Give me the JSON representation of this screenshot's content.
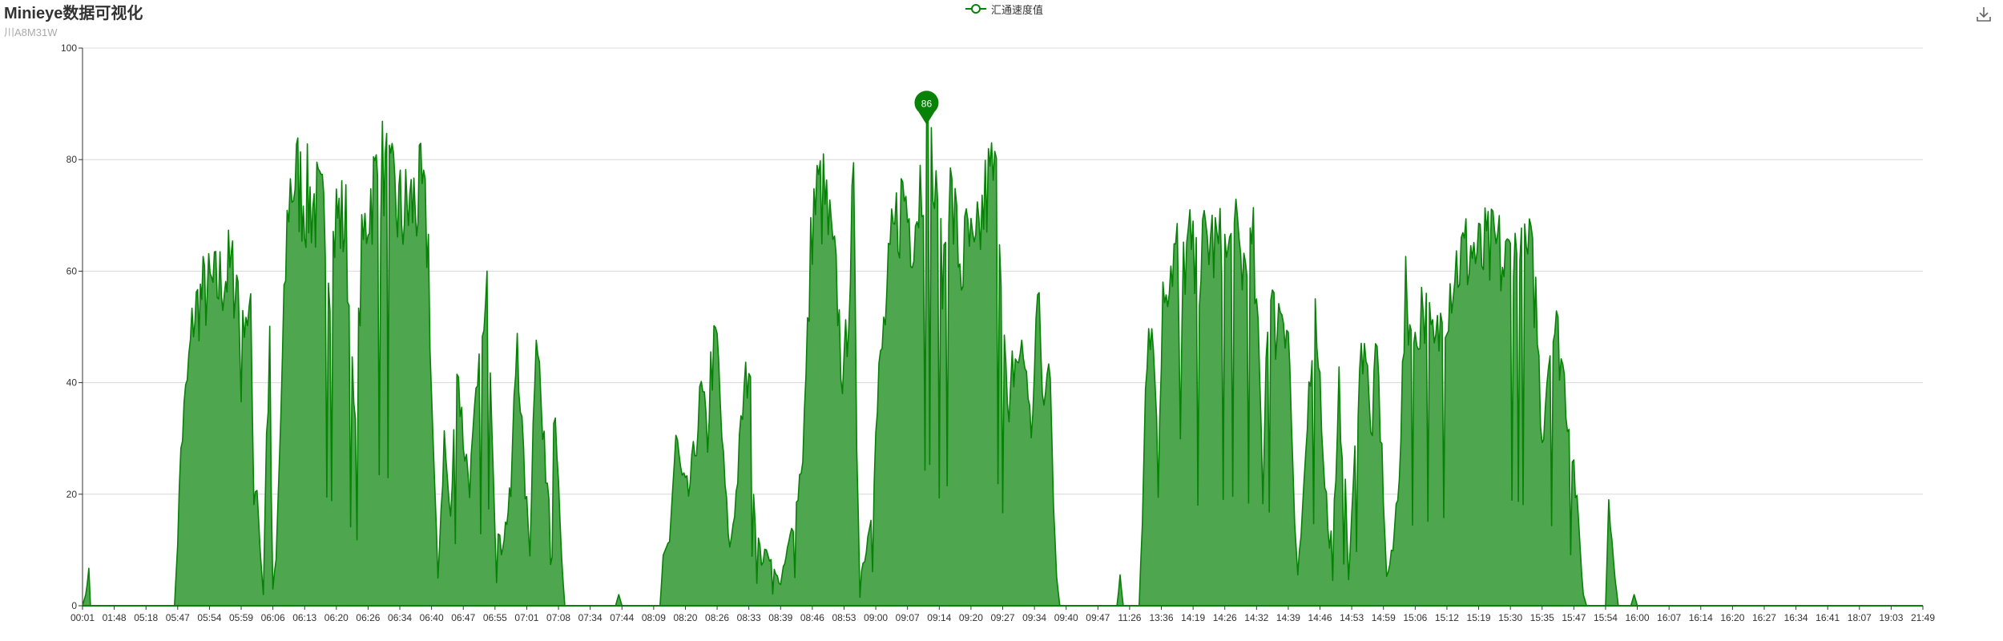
{
  "title": "Minieye数据可视化",
  "subtitle": "川A8M31W",
  "toolbox": {
    "save_icon": "download-icon"
  },
  "colors": {
    "series": "#078207",
    "area": "#4ea64e",
    "grid": "#d8d8d8",
    "axis": "#333333"
  },
  "chart_data": {
    "type": "area",
    "title": "Minieye数据可视化",
    "subtitle": "川A8M31W",
    "xlabel": "",
    "ylabel": "",
    "ylim": [
      0,
      100
    ],
    "yticks": [
      0,
      20,
      40,
      60,
      80,
      100
    ],
    "grid": true,
    "legend_placement": "top-center",
    "x_tick_labels": [
      "00:01",
      "01:48",
      "05:18",
      "05:47",
      "05:54",
      "05:59",
      "06:06",
      "06:13",
      "06:20",
      "06:26",
      "06:34",
      "06:40",
      "06:47",
      "06:55",
      "07:01",
      "07:08",
      "07:34",
      "07:44",
      "08:09",
      "08:20",
      "08:26",
      "08:33",
      "08:39",
      "08:46",
      "08:53",
      "09:00",
      "09:07",
      "09:14",
      "09:20",
      "09:27",
      "09:34",
      "09:40",
      "09:47",
      "11:26",
      "13:36",
      "14:19",
      "14:26",
      "14:32",
      "14:39",
      "14:46",
      "14:53",
      "14:59",
      "15:06",
      "15:12",
      "15:19",
      "15:30",
      "15:35",
      "15:47",
      "15:54",
      "16:00",
      "16:07",
      "16:14",
      "16:20",
      "16:27",
      "16:34",
      "16:41",
      "18:07",
      "19:03",
      "21:49"
    ],
    "series": [
      {
        "name": "汇通速度值",
        "profile": [
          [
            0.0,
            0
          ],
          [
            0.1,
            2
          ],
          [
            0.15,
            13
          ],
          [
            0.2,
            6
          ],
          [
            0.25,
            0
          ],
          [
            0.4,
            0
          ],
          [
            2.9,
            0
          ],
          [
            3.0,
            12
          ],
          [
            3.1,
            28
          ],
          [
            3.3,
            40
          ],
          [
            3.5,
            52
          ],
          [
            3.8,
            56
          ],
          [
            4.2,
            57
          ],
          [
            4.6,
            60
          ],
          [
            4.9,
            58
          ],
          [
            5.0,
            40
          ],
          [
            5.1,
            55
          ],
          [
            5.3,
            50
          ],
          [
            5.4,
            20
          ],
          [
            5.5,
            22
          ],
          [
            5.6,
            10
          ],
          [
            5.7,
            2
          ],
          [
            5.8,
            30
          ],
          [
            5.9,
            45
          ],
          [
            5.95,
            20
          ],
          [
            6.0,
            3
          ],
          [
            6.1,
            8
          ],
          [
            6.2,
            25
          ],
          [
            6.4,
            60
          ],
          [
            6.5,
            74
          ],
          [
            6.7,
            77
          ],
          [
            7.0,
            73
          ],
          [
            7.3,
            72
          ],
          [
            7.6,
            69
          ],
          [
            7.8,
            60
          ],
          [
            8.0,
            70
          ],
          [
            8.3,
            68
          ],
          [
            8.5,
            40
          ],
          [
            8.6,
            30
          ],
          [
            8.7,
            48
          ],
          [
            8.8,
            62
          ],
          [
            9.0,
            72
          ],
          [
            9.3,
            77
          ],
          [
            9.5,
            78
          ],
          [
            9.8,
            72
          ],
          [
            10.1,
            70
          ],
          [
            10.4,
            72
          ],
          [
            10.7,
            73
          ],
          [
            10.9,
            64
          ],
          [
            11.0,
            38
          ],
          [
            11.1,
            20
          ],
          [
            11.2,
            5
          ],
          [
            11.4,
            30
          ],
          [
            11.6,
            15
          ],
          [
            11.8,
            44
          ],
          [
            12.0,
            30
          ],
          [
            12.2,
            22
          ],
          [
            12.4,
            35
          ],
          [
            12.6,
            45
          ],
          [
            12.8,
            57
          ],
          [
            13.0,
            15
          ],
          [
            13.2,
            10
          ],
          [
            13.5,
            20
          ],
          [
            13.7,
            50
          ],
          [
            13.9,
            25
          ],
          [
            14.1,
            10
          ],
          [
            14.3,
            54
          ],
          [
            14.5,
            30
          ],
          [
            14.7,
            20
          ],
          [
            14.9,
            38
          ],
          [
            15.0,
            20
          ],
          [
            15.1,
            8
          ],
          [
            15.2,
            0
          ],
          [
            16.8,
            0
          ],
          [
            16.9,
            2
          ],
          [
            17.0,
            0
          ],
          [
            18.2,
            0
          ],
          [
            18.3,
            8
          ],
          [
            18.5,
            12
          ],
          [
            18.7,
            30
          ],
          [
            18.9,
            22
          ],
          [
            19.1,
            20
          ],
          [
            19.3,
            28
          ],
          [
            19.5,
            38
          ],
          [
            19.7,
            30
          ],
          [
            19.8,
            42
          ],
          [
            19.9,
            45
          ],
          [
            20.0,
            47
          ],
          [
            20.2,
            25
          ],
          [
            20.4,
            10
          ],
          [
            20.6,
            20
          ],
          [
            20.8,
            35
          ],
          [
            21.0,
            44
          ],
          [
            21.2,
            15
          ],
          [
            21.4,
            8
          ],
          [
            21.6,
            10
          ],
          [
            21.8,
            6
          ],
          [
            22.0,
            4
          ],
          [
            22.3,
            12
          ],
          [
            22.5,
            18
          ],
          [
            22.7,
            28
          ],
          [
            22.8,
            40
          ],
          [
            22.9,
            55
          ],
          [
            23.0,
            70
          ],
          [
            23.2,
            74
          ],
          [
            23.4,
            72
          ],
          [
            23.6,
            64
          ],
          [
            23.8,
            55
          ],
          [
            23.9,
            45
          ],
          [
            24.0,
            40
          ],
          [
            24.2,
            62
          ],
          [
            24.3,
            72
          ],
          [
            24.4,
            30
          ],
          [
            24.5,
            5
          ],
          [
            24.7,
            10
          ],
          [
            24.9,
            20
          ],
          [
            25.1,
            40
          ],
          [
            25.3,
            52
          ],
          [
            25.5,
            63
          ],
          [
            25.7,
            70
          ],
          [
            25.9,
            74
          ],
          [
            26.1,
            68
          ],
          [
            26.3,
            72
          ],
          [
            26.5,
            80
          ],
          [
            26.7,
            83
          ],
          [
            26.9,
            70
          ],
          [
            27.1,
            58
          ],
          [
            27.3,
            75
          ],
          [
            27.5,
            68
          ],
          [
            27.7,
            60
          ],
          [
            27.9,
            66
          ],
          [
            28.1,
            60
          ],
          [
            28.3,
            68
          ],
          [
            28.5,
            74
          ],
          [
            28.7,
            77
          ],
          [
            28.9,
            70
          ],
          [
            29.1,
            40
          ],
          [
            29.2,
            30
          ],
          [
            29.3,
            42
          ],
          [
            29.5,
            45
          ],
          [
            29.7,
            44
          ],
          [
            29.8,
            40
          ],
          [
            29.9,
            28
          ],
          [
            30.0,
            45
          ],
          [
            30.1,
            55
          ],
          [
            30.3,
            35
          ],
          [
            30.5,
            45
          ],
          [
            30.6,
            20
          ],
          [
            30.7,
            5
          ],
          [
            30.8,
            0
          ],
          [
            32.6,
            0
          ],
          [
            32.7,
            5
          ],
          [
            32.8,
            0
          ],
          [
            33.3,
            0
          ],
          [
            33.4,
            15
          ],
          [
            33.5,
            40
          ],
          [
            33.6,
            55
          ],
          [
            33.8,
            45
          ],
          [
            33.9,
            20
          ],
          [
            34.0,
            48
          ],
          [
            34.1,
            58
          ],
          [
            34.3,
            62
          ],
          [
            34.5,
            64
          ],
          [
            34.6,
            30
          ],
          [
            34.7,
            62
          ],
          [
            34.9,
            64
          ],
          [
            35.1,
            58
          ],
          [
            35.3,
            63
          ],
          [
            35.5,
            66
          ],
          [
            35.7,
            64
          ],
          [
            35.9,
            63
          ],
          [
            36.1,
            62
          ],
          [
            36.3,
            65
          ],
          [
            36.5,
            62
          ],
          [
            36.7,
            60
          ],
          [
            36.9,
            63
          ],
          [
            37.1,
            40
          ],
          [
            37.2,
            20
          ],
          [
            37.3,
            45
          ],
          [
            37.4,
            55
          ],
          [
            37.6,
            50
          ],
          [
            37.8,
            55
          ],
          [
            38.0,
            50
          ],
          [
            38.2,
            15
          ],
          [
            38.3,
            5
          ],
          [
            38.5,
            20
          ],
          [
            38.7,
            45
          ],
          [
            38.9,
            52
          ],
          [
            39.1,
            28
          ],
          [
            39.3,
            10
          ],
          [
            39.5,
            20
          ],
          [
            39.6,
            38
          ],
          [
            39.8,
            20
          ],
          [
            39.9,
            5
          ],
          [
            40.0,
            15
          ],
          [
            40.2,
            38
          ],
          [
            40.4,
            50
          ],
          [
            40.6,
            30
          ],
          [
            40.8,
            45
          ],
          [
            41.0,
            20
          ],
          [
            41.1,
            5
          ],
          [
            41.3,
            10
          ],
          [
            41.5,
            25
          ],
          [
            41.7,
            55
          ],
          [
            42.0,
            45
          ],
          [
            42.2,
            55
          ],
          [
            42.4,
            50
          ],
          [
            42.6,
            45
          ],
          [
            42.8,
            50
          ],
          [
            43.0,
            55
          ],
          [
            43.2,
            60
          ],
          [
            43.4,
            62
          ],
          [
            43.6,
            63
          ],
          [
            43.8,
            64
          ],
          [
            44.0,
            62
          ],
          [
            44.2,
            63
          ],
          [
            44.4,
            63
          ],
          [
            44.6,
            64
          ],
          [
            44.8,
            60
          ],
          [
            45.0,
            63
          ],
          [
            45.2,
            62
          ],
          [
            45.4,
            60
          ],
          [
            45.6,
            63
          ],
          [
            45.8,
            55
          ],
          [
            46.0,
            30
          ],
          [
            46.2,
            45
          ],
          [
            46.4,
            50
          ],
          [
            46.6,
            45
          ],
          [
            46.8,
            35
          ],
          [
            47.0,
            25
          ],
          [
            47.2,
            10
          ],
          [
            47.3,
            2
          ],
          [
            47.4,
            0
          ],
          [
            48.0,
            0
          ],
          [
            48.1,
            18
          ],
          [
            48.2,
            12
          ],
          [
            48.3,
            5
          ],
          [
            48.4,
            0
          ],
          [
            48.8,
            0
          ],
          [
            48.9,
            2
          ],
          [
            49.0,
            0
          ],
          [
            58.0,
            0
          ]
        ],
        "peak_label": {
          "x": 26.6,
          "value": 86
        }
      }
    ]
  }
}
